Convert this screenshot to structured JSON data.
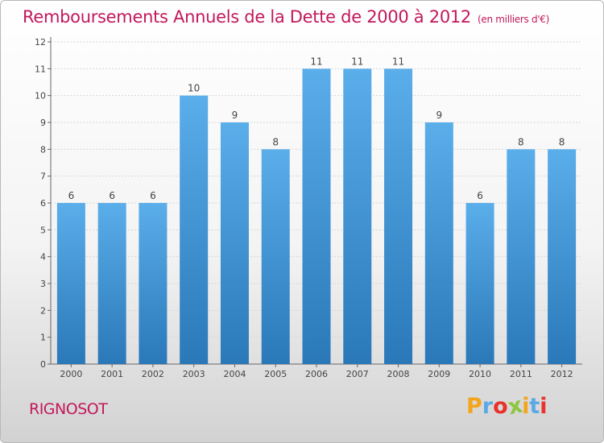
{
  "title": "Remboursements Annuels de la Dette de 2000 à 2012",
  "subtitle": "(en milliers d'€)",
  "commune": "RIGNOSOT",
  "logo": {
    "letters": [
      "P",
      "r",
      "o",
      "x",
      "i",
      "t",
      "i"
    ],
    "colors": [
      "#f4a51c",
      "#5aa9e6",
      "#e8322b",
      "#8dc63f",
      "#f4a51c",
      "#5aa9e6",
      "#e8322b"
    ]
  },
  "colors": {
    "accent": "#c2185b",
    "bar_top": "#5aaeea",
    "bar_bottom": "#2a78b8"
  },
  "chart_data": {
    "type": "bar",
    "categories": [
      "2000",
      "2001",
      "2002",
      "2003",
      "2004",
      "2005",
      "2006",
      "2007",
      "2008",
      "2009",
      "2010",
      "2011",
      "2012"
    ],
    "values": [
      6,
      6,
      6,
      10,
      9,
      8,
      11,
      11,
      11,
      9,
      6,
      8,
      8
    ],
    "data_labels": [
      "6",
      "6",
      "6",
      "10",
      "9",
      "8",
      "11",
      "11",
      "11",
      "9",
      "6",
      "8",
      "8"
    ],
    "yticks": [
      "0",
      "1",
      "2",
      "3",
      "4",
      "5",
      "6",
      "7",
      "8",
      "9",
      "10",
      "11",
      "12"
    ],
    "ylim": [
      0,
      12
    ],
    "grid": true,
    "xlabel": "",
    "ylabel": ""
  }
}
